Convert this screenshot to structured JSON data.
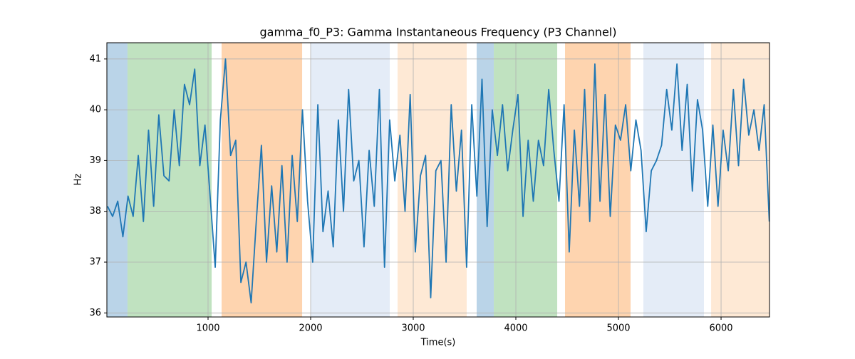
{
  "chart_data": {
    "type": "line",
    "title": "gamma_f0_P3: Gamma Instantaneous Frequency (P3 Channel)",
    "xlabel": "Time(s)",
    "ylabel": "Hz",
    "xlim": [
      14,
      6472
    ],
    "ylim": [
      35.92,
      41.32
    ],
    "xticks": [
      1000,
      2000,
      3000,
      4000,
      5000,
      6000
    ],
    "yticks": [
      36,
      37,
      38,
      39,
      40,
      41
    ],
    "grid": true,
    "spans": [
      {
        "x0": 14,
        "x1": 215,
        "color": "#bad4e8"
      },
      {
        "x0": 215,
        "x1": 1035,
        "color": "#c0e2c0"
      },
      {
        "x0": 1132,
        "x1": 1917,
        "color": "#fed4af"
      },
      {
        "x0": 2000,
        "x1": 2771,
        "color": "#e4ecf7"
      },
      {
        "x0": 2847,
        "x1": 3521,
        "color": "#fee9d5"
      },
      {
        "x0": 3618,
        "x1": 3785,
        "color": "#bad4e8"
      },
      {
        "x0": 3785,
        "x1": 4403,
        "color": "#c0e2c0"
      },
      {
        "x0": 4479,
        "x1": 5118,
        "color": "#fed4af"
      },
      {
        "x0": 5243,
        "x1": 5833,
        "color": "#e4ecf7"
      },
      {
        "x0": 5903,
        "x1": 6472,
        "color": "#fee9d5"
      }
    ],
    "series": [
      {
        "color": "#1f77b4",
        "x": [
          20,
          70,
          120,
          170,
          220,
          270,
          320,
          370,
          420,
          470,
          520,
          570,
          620,
          670,
          720,
          770,
          820,
          870,
          920,
          970,
          1020,
          1070,
          1120,
          1170,
          1220,
          1270,
          1320,
          1370,
          1420,
          1470,
          1520,
          1570,
          1620,
          1670,
          1720,
          1770,
          1820,
          1870,
          1920,
          1970,
          2020,
          2070,
          2120,
          2170,
          2220,
          2270,
          2320,
          2370,
          2420,
          2470,
          2520,
          2570,
          2620,
          2670,
          2720,
          2770,
          2820,
          2870,
          2920,
          2970,
          3020,
          3070,
          3120,
          3170,
          3220,
          3270,
          3320,
          3370,
          3420,
          3470,
          3520,
          3570,
          3620,
          3670,
          3720,
          3770,
          3820,
          3870,
          3920,
          3970,
          4020,
          4070,
          4120,
          4170,
          4220,
          4270,
          4320,
          4370,
          4420,
          4470,
          4520,
          4570,
          4620,
          4670,
          4720,
          4770,
          4820,
          4870,
          4920,
          4970,
          5020,
          5070,
          5120,
          5170,
          5220,
          5270,
          5320,
          5370,
          5420,
          5470,
          5520,
          5570,
          5620,
          5670,
          5720,
          5770,
          5820,
          5870,
          5920,
          5970,
          6020,
          6070,
          6120,
          6170,
          6220,
          6270,
          6320,
          6370,
          6420,
          6470
        ],
        "values": [
          38.1,
          37.9,
          38.2,
          37.5,
          38.3,
          37.9,
          39.1,
          37.8,
          39.6,
          38.1,
          39.9,
          38.7,
          38.6,
          40.0,
          38.9,
          40.5,
          40.1,
          40.8,
          38.9,
          39.7,
          38.3,
          36.9,
          39.8,
          41.0,
          39.1,
          39.4,
          36.6,
          37.0,
          36.2,
          37.8,
          39.3,
          37.0,
          38.5,
          37.2,
          38.9,
          37.0,
          39.1,
          37.8,
          40.0,
          38.2,
          37.0,
          40.1,
          37.6,
          38.4,
          37.3,
          39.8,
          38.0,
          40.4,
          38.6,
          39.0,
          37.3,
          39.2,
          38.1,
          40.4,
          36.9,
          39.8,
          38.6,
          39.5,
          38.0,
          40.3,
          37.2,
          38.7,
          39.1,
          36.3,
          38.8,
          39.0,
          37.0,
          40.1,
          38.4,
          39.6,
          36.9,
          40.1,
          38.3,
          40.6,
          37.7,
          40.0,
          39.1,
          40.1,
          38.8,
          39.6,
          40.3,
          37.9,
          39.4,
          38.2,
          39.4,
          38.9,
          40.4,
          39.2,
          38.2,
          40.1,
          37.2,
          39.6,
          38.1,
          40.4,
          37.8,
          40.9,
          38.2,
          40.3,
          37.9,
          39.7,
          39.4,
          40.1,
          38.8,
          39.8,
          39.2,
          37.6,
          38.8,
          39.0,
          39.3,
          40.4,
          39.6,
          40.9,
          39.2,
          40.5,
          38.4,
          40.2,
          39.6,
          38.1,
          39.7,
          38.1,
          39.6,
          38.8,
          40.4,
          38.9,
          40.6,
          39.5,
          40.0,
          39.2,
          40.1,
          37.8
        ]
      }
    ]
  }
}
